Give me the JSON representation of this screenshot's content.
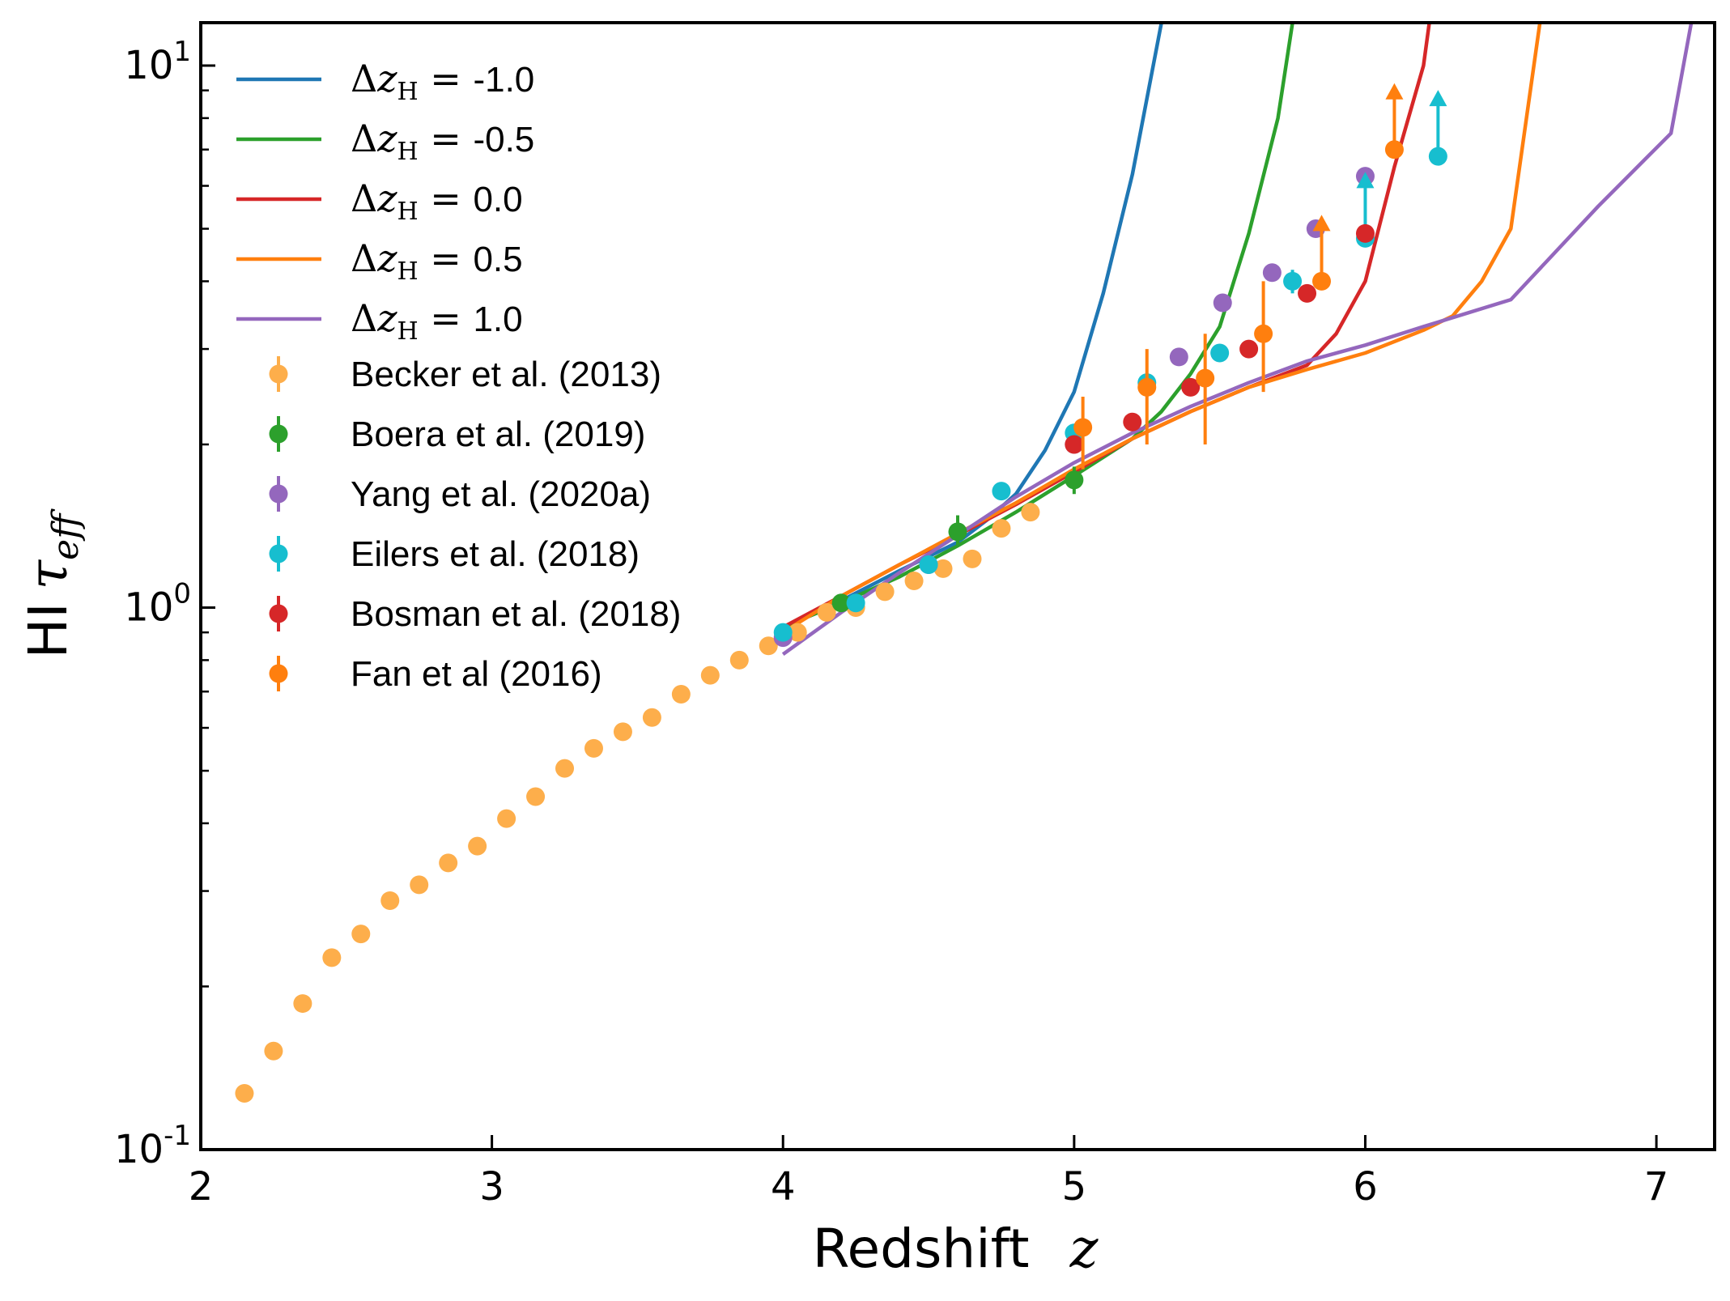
{
  "chart_data": {
    "type": "scatter",
    "xlabel": "Redshift",
    "xlabel_symbol": "z",
    "ylabel": "HI",
    "ylabel_symbol": "τ",
    "ylabel_subscript": "eff",
    "xlim": [
      2,
      7.2
    ],
    "ylim": [
      0.1,
      12
    ],
    "yscale": "log",
    "x_ticks": [
      "2",
      "3",
      "4",
      "5",
      "6",
      "7"
    ],
    "y_ticks": [
      {
        "value": 0.1,
        "base": "10",
        "exp": "-1"
      },
      {
        "value": 1,
        "base": "10",
        "exp": "0"
      },
      {
        "value": 10,
        "base": "10",
        "exp": "1"
      }
    ],
    "legend_position": "upper-left",
    "colors": {
      "blue": "#1f77b4",
      "green": "#2ca02c",
      "red": "#d62728",
      "orange": "#ff7f0e",
      "purple": "#9467bd",
      "cyan": "#17becf",
      "light_orange": "#fdae4b"
    },
    "model_series": [
      {
        "name": "Δz_H = -1.0",
        "delta_label": "-1.0",
        "color": "#1f77b4",
        "x": [
          4.0,
          4.2,
          4.4,
          4.6,
          4.7,
          4.8,
          4.9,
          5.0,
          5.1,
          5.2,
          5.3
        ],
        "y": [
          0.92,
          1.03,
          1.17,
          1.32,
          1.45,
          1.62,
          1.95,
          2.5,
          3.8,
          6.3,
          12.0
        ]
      },
      {
        "name": "Δz_H = -0.5",
        "delta_label": "-0.5",
        "color": "#2ca02c",
        "x": [
          4.0,
          4.2,
          4.4,
          4.6,
          4.8,
          5.0,
          5.2,
          5.3,
          5.4,
          5.5,
          5.6,
          5.7,
          5.75
        ],
        "y": [
          0.92,
          1.02,
          1.14,
          1.3,
          1.5,
          1.75,
          2.05,
          2.3,
          2.7,
          3.3,
          4.9,
          8.0,
          12.0
        ]
      },
      {
        "name": "Δz_H = 0.0",
        "delta_label": "0.0",
        "color": "#d62728",
        "x": [
          4.0,
          4.2,
          4.4,
          4.6,
          4.8,
          5.0,
          5.2,
          5.4,
          5.6,
          5.8,
          5.9,
          6.0,
          6.1,
          6.2,
          6.22
        ],
        "y": [
          0.92,
          1.05,
          1.2,
          1.36,
          1.55,
          1.78,
          2.05,
          2.3,
          2.55,
          2.8,
          3.2,
          4.0,
          6.5,
          10.0,
          12.0
        ]
      },
      {
        "name": "Δz_H = 0.5",
        "delta_label": "0.5",
        "color": "#ff7f0e",
        "x": [
          4.0,
          4.2,
          4.4,
          4.6,
          4.8,
          5.0,
          5.2,
          5.4,
          5.6,
          5.8,
          6.0,
          6.2,
          6.3,
          6.4,
          6.5,
          6.6
        ],
        "y": [
          0.9,
          1.05,
          1.2,
          1.37,
          1.56,
          1.8,
          2.05,
          2.3,
          2.55,
          2.75,
          2.95,
          3.25,
          3.45,
          4.0,
          5.0,
          12.0
        ]
      },
      {
        "name": "Δz_H = 1.0",
        "delta_label": "1.0",
        "color": "#9467bd",
        "x": [
          4.0,
          4.2,
          4.4,
          4.6,
          4.8,
          5.0,
          5.2,
          5.4,
          5.6,
          5.8,
          6.0,
          6.2,
          6.5,
          6.8,
          7.05,
          7.12
        ],
        "y": [
          0.82,
          0.98,
          1.16,
          1.36,
          1.6,
          1.85,
          2.1,
          2.35,
          2.6,
          2.85,
          3.05,
          3.3,
          3.7,
          5.5,
          7.5,
          12.0
        ]
      }
    ],
    "observations": [
      {
        "name": "Becker et al. (2013)",
        "color": "#fdae4b",
        "points": [
          {
            "x": 2.15,
            "y": 0.127
          },
          {
            "x": 2.25,
            "y": 0.152
          },
          {
            "x": 2.35,
            "y": 0.186
          },
          {
            "x": 2.45,
            "y": 0.226
          },
          {
            "x": 2.55,
            "y": 0.25
          },
          {
            "x": 2.65,
            "y": 0.288
          },
          {
            "x": 2.75,
            "y": 0.308
          },
          {
            "x": 2.85,
            "y": 0.338
          },
          {
            "x": 2.95,
            "y": 0.363
          },
          {
            "x": 3.05,
            "y": 0.408
          },
          {
            "x": 3.15,
            "y": 0.448
          },
          {
            "x": 3.25,
            "y": 0.505
          },
          {
            "x": 3.35,
            "y": 0.55
          },
          {
            "x": 3.45,
            "y": 0.59
          },
          {
            "x": 3.55,
            "y": 0.627
          },
          {
            "x": 3.65,
            "y": 0.692
          },
          {
            "x": 3.75,
            "y": 0.75
          },
          {
            "x": 3.85,
            "y": 0.8
          },
          {
            "x": 3.95,
            "y": 0.85
          },
          {
            "x": 4.05,
            "y": 0.9
          },
          {
            "x": 4.15,
            "y": 0.98
          },
          {
            "x": 4.25,
            "y": 1.0
          },
          {
            "x": 4.35,
            "y": 1.07
          },
          {
            "x": 4.45,
            "y": 1.12
          },
          {
            "x": 4.55,
            "y": 1.18
          },
          {
            "x": 4.65,
            "y": 1.23
          },
          {
            "x": 4.75,
            "y": 1.4
          },
          {
            "x": 4.85,
            "y": 1.5
          }
        ]
      },
      {
        "name": "Boera et al. (2019)",
        "color": "#2ca02c",
        "points": [
          {
            "x": 4.2,
            "y": 1.02,
            "yerr": [
              0.03,
              0.03
            ]
          },
          {
            "x": 4.6,
            "y": 1.38,
            "yerr": [
              0.08,
              0.1
            ]
          },
          {
            "x": 5.0,
            "y": 1.72,
            "yerr": [
              0.1,
              0.1
            ]
          }
        ]
      },
      {
        "name": "Yang et al. (2020a)",
        "color": "#9467bd",
        "points": [
          {
            "x": 4.0,
            "y": 0.88
          },
          {
            "x": 4.5,
            "y": 1.2
          },
          {
            "x": 5.0,
            "y": 2.0
          },
          {
            "x": 5.36,
            "y": 2.9
          },
          {
            "x": 5.51,
            "y": 3.65
          },
          {
            "x": 5.68,
            "y": 4.15
          },
          {
            "x": 5.83,
            "y": 5.0
          },
          {
            "x": 6.0,
            "y": 6.25
          }
        ]
      },
      {
        "name": "Eilers et al. (2018)",
        "color": "#17becf",
        "points": [
          {
            "x": 4.0,
            "y": 0.9
          },
          {
            "x": 4.25,
            "y": 1.02
          },
          {
            "x": 4.5,
            "y": 1.2
          },
          {
            "x": 4.75,
            "y": 1.64
          },
          {
            "x": 5.0,
            "y": 2.1
          },
          {
            "x": 5.25,
            "y": 2.6
          },
          {
            "x": 5.5,
            "y": 2.95
          },
          {
            "x": 5.75,
            "y": 4.0,
            "yerr": [
              0.2,
              0.2
            ]
          },
          {
            "x": 6.0,
            "y": 4.8,
            "lower_limit": true
          },
          {
            "x": 6.25,
            "y": 6.8,
            "lower_limit": true
          }
        ]
      },
      {
        "name": "Bosman et al. (2018)",
        "color": "#d62728",
        "points": [
          {
            "x": 5.0,
            "y": 2.0
          },
          {
            "x": 5.2,
            "y": 2.2
          },
          {
            "x": 5.4,
            "y": 2.55
          },
          {
            "x": 5.6,
            "y": 3.0
          },
          {
            "x": 5.8,
            "y": 3.8
          },
          {
            "x": 6.0,
            "y": 4.9
          }
        ]
      },
      {
        "name": "Fan et al (2016)",
        "color": "#ff7f0e",
        "points": [
          {
            "x": 5.03,
            "y": 2.15,
            "yerr": [
              0.35,
              0.3
            ]
          },
          {
            "x": 5.25,
            "y": 2.55,
            "yerr": [
              0.55,
              0.45
            ]
          },
          {
            "x": 5.45,
            "y": 2.65,
            "yerr": [
              0.65,
              0.55
            ]
          },
          {
            "x": 5.65,
            "y": 3.2,
            "yerr": [
              0.7,
              0.8
            ]
          },
          {
            "x": 5.85,
            "y": 4.0,
            "lower_limit": true
          },
          {
            "x": 6.1,
            "y": 7.0,
            "lower_limit": true
          }
        ]
      }
    ]
  }
}
